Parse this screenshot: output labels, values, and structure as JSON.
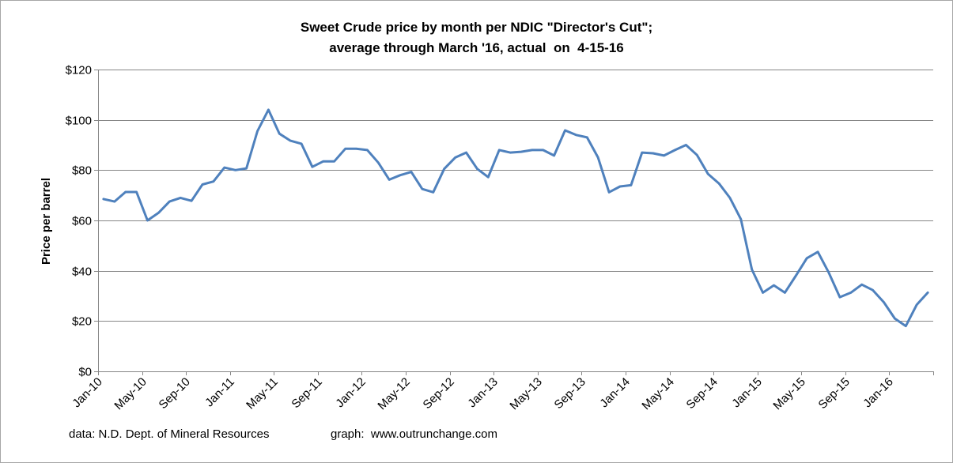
{
  "chart_data": {
    "type": "line",
    "title": "Sweet Crude price by month per NDIC \"Director's Cut\";",
    "subtitle": "average through March '16, actual  on  4-15-16",
    "ylabel": "Price per barrel",
    "xlabel": "",
    "ylim": [
      0,
      120
    ],
    "y_ticks": [
      "$0",
      "$20",
      "$40",
      "$60",
      "$80",
      "$100",
      "$120"
    ],
    "y_tick_values": [
      0,
      20,
      40,
      60,
      80,
      100,
      120
    ],
    "x_tick_labels": [
      "Jan-10",
      "May-10",
      "Sep-10",
      "Jan-11",
      "May-11",
      "Sep-11",
      "Jan-12",
      "May-12",
      "Sep-12",
      "Jan-13",
      "May-13",
      "Sep-13",
      "Jan-14",
      "May-14",
      "Sep-14",
      "Jan-15",
      "May-15",
      "Sep-15",
      "Jan-16"
    ],
    "x_start": "Jan-10",
    "x_end": "Mar-16",
    "grid": "horizontal",
    "legend": "none",
    "series": [
      {
        "color": "#4f81bd",
        "values": [
          68.5,
          67.5,
          71.3,
          71.3,
          60.0,
          63.0,
          67.5,
          69.0,
          67.8,
          74.3,
          75.5,
          81.0,
          80.0,
          80.7,
          95.5,
          104.0,
          94.5,
          91.7,
          90.5,
          81.3,
          83.5,
          83.5,
          88.5,
          88.5,
          88.0,
          83.0,
          76.2,
          78.0,
          79.3,
          72.5,
          71.2,
          80.5,
          85.0,
          87.0,
          80.5,
          77.2,
          88.0,
          87.0,
          87.3,
          88.0,
          88.0,
          85.8,
          95.8,
          94.0,
          93.0,
          85.0,
          71.2,
          73.5,
          74.0,
          87.0,
          86.7,
          85.8,
          88.0,
          90.0,
          86.0,
          78.5,
          74.7,
          69.0,
          60.5,
          40.5,
          31.3,
          34.2,
          31.3,
          38.0,
          45.0,
          47.5,
          39.2,
          29.5,
          31.3,
          34.5,
          32.3,
          27.5,
          21.0,
          18.0,
          26.5,
          31.3
        ]
      }
    ]
  },
  "footer": {
    "source": "data: N.D. Dept. of Mineral Resources",
    "graph": "graph:  www.outrunchange.com"
  }
}
